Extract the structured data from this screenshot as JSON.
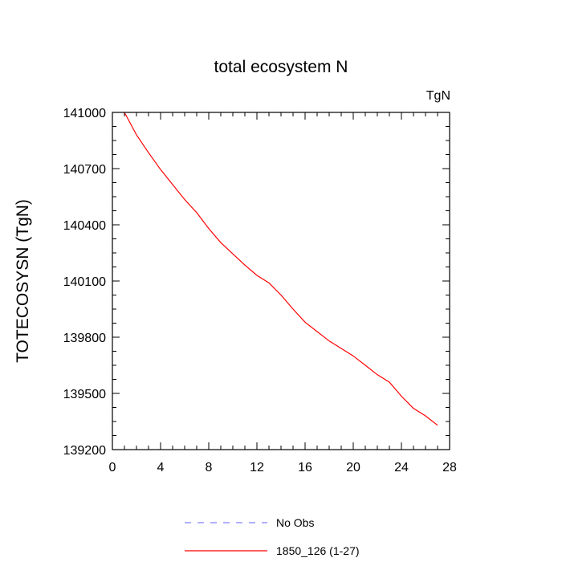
{
  "chart_data": {
    "type": "line",
    "title": "total ecosystem N",
    "units_label": "TgN",
    "xlabel": "",
    "ylabel": "TOTECOSYSN  (TgN)",
    "xlim": [
      0,
      28
    ],
    "ylim": [
      139200,
      141000
    ],
    "xticks": [
      0,
      4,
      8,
      12,
      16,
      20,
      24,
      28
    ],
    "yticks": [
      139200,
      139500,
      139800,
      140100,
      140400,
      140700,
      141000
    ],
    "grid": false,
    "legend_position": "bottom",
    "series": [
      {
        "name": "No Obs",
        "color": "#8080ff",
        "dash": "dashed",
        "x": [],
        "y": []
      },
      {
        "name": "1850_126 (1-27)",
        "color": "#ff0000",
        "dash": "solid",
        "x": [
          1,
          2,
          3,
          4,
          5,
          6,
          7,
          8,
          9,
          10,
          11,
          12,
          13,
          14,
          15,
          16,
          17,
          18,
          19,
          20,
          21,
          22,
          23,
          24,
          25,
          26,
          27
        ],
        "y": [
          141000,
          140880,
          140785,
          140695,
          140615,
          140535,
          140465,
          140380,
          140305,
          140245,
          140185,
          140130,
          140090,
          140025,
          139950,
          139880,
          139830,
          139780,
          139740,
          139700,
          139650,
          139600,
          139560,
          139485,
          139420,
          139380,
          139330
        ]
      }
    ]
  }
}
